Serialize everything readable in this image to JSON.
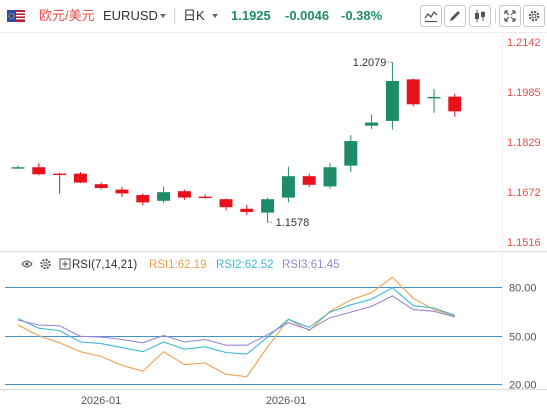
{
  "header": {
    "pair_name": "欧元/美元",
    "pair_code": "EURUSD",
    "period": "日K",
    "last_price": "1.1925",
    "change": "-0.0046",
    "change_pct": "-0.38%",
    "flag_icon": "us-eu-flag-icon",
    "tools": [
      "line-tool-icon",
      "draw-tool-icon",
      "candle-type-icon",
      "fullscreen-icon",
      "settings-icon"
    ]
  },
  "colors": {
    "up": "#1e8c6a",
    "down": "#e8101b",
    "price_axis": "#e34d4d",
    "rsi1": "#f0a04b",
    "rsi2": "#3fb8d6",
    "rsi3": "#9b86d8",
    "ref_line": "#4a90c8"
  },
  "rsi_legend": {
    "title": "RSI(7,14,21)",
    "rsi1": "RSI1:62.19",
    "rsi2": "RSI2:62.52",
    "rsi3": "RSI3:61.45",
    "icons": [
      "eye-icon",
      "settings-icon",
      "plus-box-icon"
    ]
  },
  "chart_data": [
    {
      "type": "candlestick",
      "title": "",
      "ylim": [
        1.1516,
        1.2142
      ],
      "y_ticks": [
        "1.2142",
        "1.1985",
        "1.1829",
        "1.1672",
        "1.1516"
      ],
      "x_tick_labels": [
        "2026-01",
        "2026-01"
      ],
      "annotations": {
        "high": "1.2079",
        "low": "1.1578"
      },
      "candles": [
        {
          "o": 1.175,
          "h": 1.1755,
          "l": 1.1745,
          "c": 1.175
        },
        {
          "o": 1.175,
          "h": 1.1763,
          "l": 1.1725,
          "c": 1.1728
        },
        {
          "o": 1.173,
          "h": 1.1733,
          "l": 1.1667,
          "c": 1.1729
        },
        {
          "o": 1.173,
          "h": 1.1735,
          "l": 1.17,
          "c": 1.1702
        },
        {
          "o": 1.1697,
          "h": 1.1703,
          "l": 1.168,
          "c": 1.1685
        },
        {
          "o": 1.168,
          "h": 1.1688,
          "l": 1.1657,
          "c": 1.1668
        },
        {
          "o": 1.1663,
          "h": 1.1668,
          "l": 1.163,
          "c": 1.164
        },
        {
          "o": 1.1645,
          "h": 1.169,
          "l": 1.1638,
          "c": 1.1672
        },
        {
          "o": 1.1675,
          "h": 1.168,
          "l": 1.1648,
          "c": 1.1655
        },
        {
          "o": 1.1658,
          "h": 1.1665,
          "l": 1.1652,
          "c": 1.1657
        },
        {
          "o": 1.165,
          "h": 1.1652,
          "l": 1.1615,
          "c": 1.1625
        },
        {
          "o": 1.162,
          "h": 1.1632,
          "l": 1.16,
          "c": 1.161
        },
        {
          "o": 1.1608,
          "h": 1.1655,
          "l": 1.1578,
          "c": 1.165
        },
        {
          "o": 1.1655,
          "h": 1.1752,
          "l": 1.164,
          "c": 1.1722
        },
        {
          "o": 1.1722,
          "h": 1.173,
          "l": 1.1688,
          "c": 1.1695
        },
        {
          "o": 1.169,
          "h": 1.1763,
          "l": 1.1683,
          "c": 1.175
        },
        {
          "o": 1.1755,
          "h": 1.185,
          "l": 1.1735,
          "c": 1.1832
        },
        {
          "o": 1.188,
          "h": 1.1915,
          "l": 1.187,
          "c": 1.189
        },
        {
          "o": 1.1895,
          "h": 1.2079,
          "l": 1.1868,
          "c": 1.202
        },
        {
          "o": 1.2025,
          "h": 1.2028,
          "l": 1.194,
          "c": 1.1947
        },
        {
          "o": 1.197,
          "h": 1.1995,
          "l": 1.192,
          "c": 1.197
        },
        {
          "o": 1.1971,
          "h": 1.198,
          "l": 1.1908,
          "c": 1.1925
        }
      ]
    },
    {
      "type": "line",
      "title": "RSI(7,14,21)",
      "ylim": [
        20,
        80
      ],
      "ref_lines": [
        80,
        50,
        20
      ],
      "y_ticks": [
        "80.00",
        "50.00",
        "20.00"
      ],
      "x": [
        1,
        2,
        3,
        4,
        5,
        6,
        7,
        8,
        9,
        10,
        11,
        12,
        13,
        14,
        15,
        16,
        17,
        18,
        19,
        20,
        21,
        22
      ],
      "series": [
        {
          "name": "RSI1",
          "values": [
            56.5,
            49.8,
            45.5,
            40.0,
            37.0,
            31.5,
            28.0,
            40.0,
            32.0,
            33.0,
            26.0,
            24.5,
            43.0,
            60.0,
            53.0,
            65.0,
            72.0,
            76.5,
            86.0,
            73.0,
            66.0,
            62.19
          ]
        },
        {
          "name": "RSI2",
          "values": [
            60.5,
            54.5,
            53.0,
            46.0,
            45.0,
            42.5,
            40.0,
            46.0,
            41.5,
            43.0,
            39.5,
            38.5,
            49.0,
            60.0,
            55.0,
            64.5,
            69.0,
            72.5,
            79.5,
            68.5,
            67.0,
            62.52
          ]
        },
        {
          "name": "RSI3",
          "values": [
            59.5,
            56.5,
            56.0,
            49.5,
            49.0,
            47.5,
            45.5,
            50.0,
            46.0,
            47.5,
            44.0,
            44.0,
            50.5,
            58.0,
            53.5,
            61.0,
            64.5,
            68.0,
            74.5,
            66.0,
            65.0,
            61.45
          ]
        }
      ]
    }
  ]
}
